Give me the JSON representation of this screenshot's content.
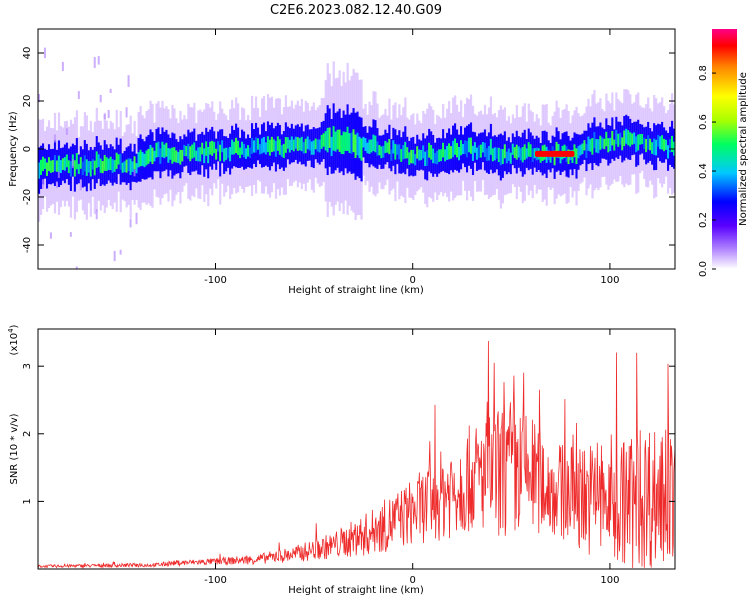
{
  "chart_data": [
    {
      "type": "heatmap",
      "title": "C2E6.2023.082.12.40.G09",
      "xlabel": "Height of straight line (km)",
      "ylabel": "Frequency (Hz)",
      "xlim": [
        -190,
        133
      ],
      "ylim": [
        -50,
        50
      ],
      "xticks": [
        "-100",
        "0",
        "100"
      ],
      "yticks": [
        "40",
        "20",
        "0",
        "-20",
        "-40"
      ],
      "ridge_center_hz": {
        "x": [
          -190,
          -140,
          -130,
          -80,
          -40,
          -20,
          0,
          30,
          50,
          60,
          70,
          85,
          95,
          110,
          133
        ],
        "y": [
          -7,
          -6,
          -2,
          0,
          3,
          1,
          -3,
          0,
          -2,
          -2,
          -2,
          -1,
          3,
          4,
          0
        ]
      },
      "high_amplitude_segment": {
        "x": [
          62,
          82
        ],
        "frequency_hz": -2,
        "amplitude": 0.95
      },
      "colorbar": {
        "label": "Normalized spectral amplitude",
        "range": [
          0,
          0.98
        ],
        "ticks": [
          "0.0",
          "0.2",
          "0.4",
          "0.6",
          "0.8"
        ]
      }
    },
    {
      "type": "line",
      "xlabel": "Height of straight line (km)",
      "ylabel": "SNR (10 * v/v)",
      "exponent_label": "(x10",
      "exponent_power": "4",
      "exponent_close": ")",
      "xlim": [
        -190,
        133
      ],
      "ylim": [
        0,
        3.55
      ],
      "xticks": [
        "-100",
        "0",
        "100"
      ],
      "yticks": [
        "1",
        "2",
        "3"
      ],
      "color": "#ee2a2a",
      "envelope": {
        "x": [
          -190,
          -130,
          -120,
          -100,
          -80,
          -60,
          -40,
          -20,
          0,
          10,
          20,
          30,
          40,
          50,
          60,
          70,
          80,
          90,
          100,
          110,
          120,
          133
        ],
        "mean": [
          0.04,
          0.06,
          0.09,
          0.11,
          0.14,
          0.22,
          0.35,
          0.55,
          0.85,
          1.0,
          1.2,
          1.35,
          1.4,
          1.45,
          1.4,
          1.2,
          1.1,
          1.05,
          1.0,
          1.0,
          1.1,
          1.0
        ],
        "spread": [
          0.02,
          0.03,
          0.04,
          0.05,
          0.07,
          0.12,
          0.2,
          0.35,
          0.5,
          0.6,
          0.75,
          0.8,
          0.9,
          1.1,
          0.9,
          0.7,
          0.75,
          0.85,
          1.0,
          1.05,
          1.1,
          1.0
        ]
      }
    }
  ]
}
